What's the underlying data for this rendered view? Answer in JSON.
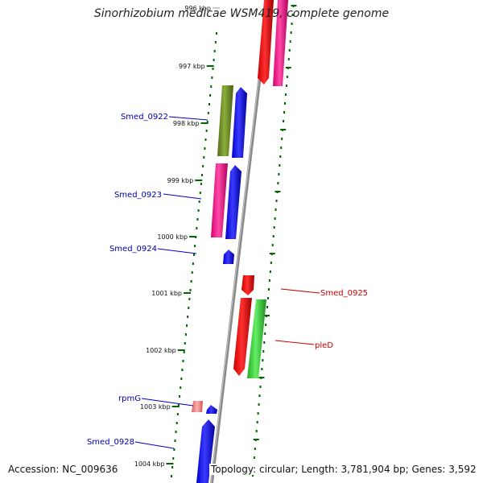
{
  "title": "Sinorhizobium medicae WSM419, complete genome",
  "footer": {
    "accession": "Accession: NC_009636",
    "summary": "Topology: circular; Length: 3,781,904 bp; Genes: 3,592"
  },
  "ticks": [
    "996 kbp",
    "997 kbp",
    "998 kbp",
    "999 kbp",
    "1000 kbp",
    "1001 kbp",
    "1002 kbp",
    "1003 kbp",
    "1004 kbp"
  ],
  "genes": [
    {
      "label": "Smed_0922",
      "color": "#0000aa"
    },
    {
      "label": "Smed_0923",
      "color": "#0000aa"
    },
    {
      "label": "Smed_0924",
      "color": "#0000aa"
    },
    {
      "label": "Smed_0925",
      "color": "#cc0000"
    },
    {
      "label": "pleD",
      "color": "#cc0000"
    },
    {
      "label": "rpmG",
      "color": "#0000aa"
    },
    {
      "label": "Smed_0928",
      "color": "#0000aa"
    }
  ],
  "colors": {
    "backbone": "#888888",
    "ticks": "#006600",
    "cds_forward_blue": "#0000ff",
    "cds_reverse_red": "#ff0000",
    "cds_pink": "#ff1493",
    "cds_olive": "#6b8e23",
    "cds_green": "#33cc33",
    "rna": "#f08080"
  }
}
